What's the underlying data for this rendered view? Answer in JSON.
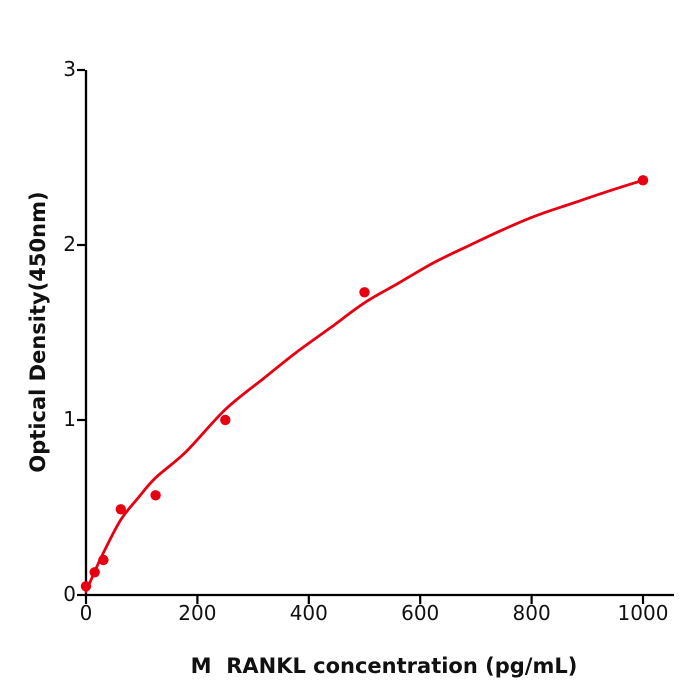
{
  "figure": {
    "background": "#ffffff",
    "accent_red": "#e60012",
    "axis_color": "#000000",
    "text_color": "#111111"
  },
  "chart_data": {
    "type": "scatter",
    "title": "",
    "xlabel": "M  RANKL concentration (pg/mL)",
    "ylabel": "Optical Density(450nm)",
    "xlim": [
      0,
      1056
    ],
    "ylim": [
      0,
      3
    ],
    "x_ticks": [
      0,
      200,
      400,
      600,
      800,
      1000
    ],
    "y_ticks": [
      0,
      1,
      2,
      3
    ],
    "grid": false,
    "legend": "none",
    "series": [
      {
        "name": "standard-points",
        "type": "scatter",
        "color": "#e60012",
        "marker_radius": 5.2,
        "points": [
          [
            0,
            0.05
          ],
          [
            15.6,
            0.13
          ],
          [
            31.2,
            0.2
          ],
          [
            62.5,
            0.49
          ],
          [
            125,
            0.57
          ],
          [
            250,
            1.0
          ],
          [
            500,
            1.73
          ],
          [
            1000,
            2.37
          ]
        ]
      },
      {
        "name": "fitted-curve",
        "type": "line",
        "color": "#e60012",
        "line_width": 2.8,
        "points": [
          [
            0,
            0.02
          ],
          [
            15,
            0.13
          ],
          [
            31,
            0.24
          ],
          [
            62.5,
            0.43
          ],
          [
            95,
            0.56
          ],
          [
            125,
            0.67
          ],
          [
            180,
            0.82
          ],
          [
            250,
            1.06
          ],
          [
            320,
            1.24
          ],
          [
            375,
            1.38
          ],
          [
            440,
            1.53
          ],
          [
            500,
            1.67
          ],
          [
            560,
            1.78
          ],
          [
            625,
            1.9
          ],
          [
            690,
            2.0
          ],
          [
            750,
            2.09
          ],
          [
            810,
            2.17
          ],
          [
            875,
            2.24
          ],
          [
            940,
            2.31
          ],
          [
            1000,
            2.37
          ]
        ]
      }
    ]
  }
}
